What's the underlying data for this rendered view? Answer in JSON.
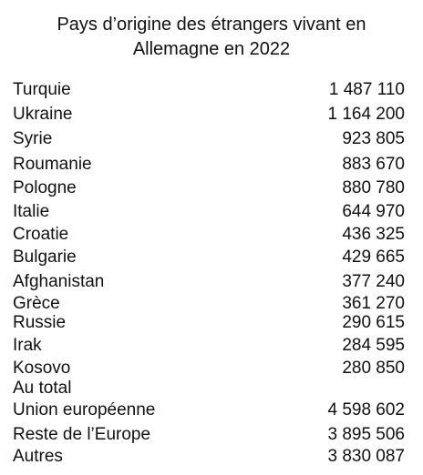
{
  "title_lines": [
    "Pays d’origine des étrangers vivant en",
    "Allemagne en 2022"
  ],
  "table": {
    "rows": [
      {
        "label": "Turquie",
        "value": "1 487 110"
      },
      {
        "label": "Ukraine",
        "value": "1 164 200"
      },
      {
        "label": "Syrie",
        "value": "923 805"
      },
      {
        "label": "Roumanie",
        "value": "883 670"
      },
      {
        "label": "Pologne",
        "value": "880 780"
      },
      {
        "label": "Italie",
        "value": "644 970"
      },
      {
        "label": "Croatie",
        "value": "436 325"
      },
      {
        "label": "Bulgarie",
        "value": "429 665"
      },
      {
        "label": "Afghanistan",
        "value": "377 240"
      },
      {
        "label": "Grèce",
        "value": "361 270"
      },
      {
        "label": "Russie",
        "value": "290 615"
      },
      {
        "label": "Irak",
        "value": "284 595"
      },
      {
        "label": "Kosovo",
        "value": "280 850"
      },
      {
        "label": "Au total"
      },
      {
        "label": "Union européenne",
        "value": "4 598 602"
      },
      {
        "label": "Reste de l’Europe",
        "value": "3 895 506"
      },
      {
        "label": "Autres",
        "value": "3 830 087"
      }
    ]
  }
}
